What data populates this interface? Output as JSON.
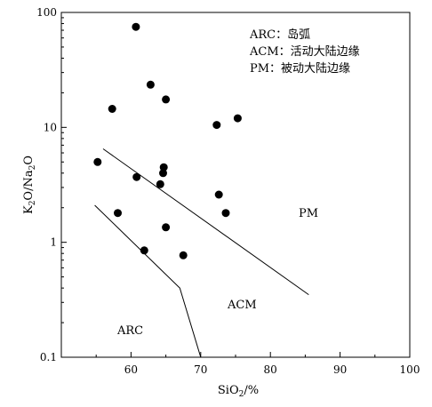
{
  "chart_data": {
    "type": "scatter",
    "xlabel": "SiO",
    "xlabel_sub": "2",
    "xlabel_unit": "/%",
    "ylabel_parts": [
      "K",
      "2",
      "O/Na",
      "2",
      "O"
    ],
    "xlim": [
      50,
      100
    ],
    "ylim": [
      0.1,
      100
    ],
    "yscale": "log",
    "x_ticks": [
      "60",
      "70",
      "80",
      "90",
      "100"
    ],
    "y_ticks": [
      "0.1",
      "1",
      "10",
      "100"
    ],
    "legend": [
      "ARC：岛弧",
      "ACM：活动大陆边缘",
      "PM：被动大陆边缘"
    ],
    "region_labels": [
      "PM",
      "ACM",
      "ARC"
    ],
    "points": [
      {
        "x": 60.7,
        "y": 75
      },
      {
        "x": 62.8,
        "y": 23.5
      },
      {
        "x": 65.0,
        "y": 17.5
      },
      {
        "x": 57.3,
        "y": 14.5
      },
      {
        "x": 75.3,
        "y": 12
      },
      {
        "x": 72.3,
        "y": 10.5
      },
      {
        "x": 55.2,
        "y": 5
      },
      {
        "x": 64.7,
        "y": 4.5
      },
      {
        "x": 64.6,
        "y": 4.0
      },
      {
        "x": 60.8,
        "y": 3.7
      },
      {
        "x": 64.2,
        "y": 3.2
      },
      {
        "x": 72.6,
        "y": 2.6
      },
      {
        "x": 58.1,
        "y": 1.8
      },
      {
        "x": 73.6,
        "y": 1.8
      },
      {
        "x": 65.0,
        "y": 1.35
      },
      {
        "x": 61.9,
        "y": 0.85
      },
      {
        "x": 67.5,
        "y": 0.77
      }
    ],
    "boundary_lines": [
      {
        "name": "ARC-ACM",
        "points": [
          [
            54.8,
            2.1
          ],
          [
            67.0,
            0.4
          ],
          [
            70.0,
            0.1
          ]
        ]
      },
      {
        "name": "ACM-PM",
        "points": [
          [
            56.0,
            6.5
          ],
          [
            85.5,
            0.35
          ]
        ]
      }
    ]
  }
}
